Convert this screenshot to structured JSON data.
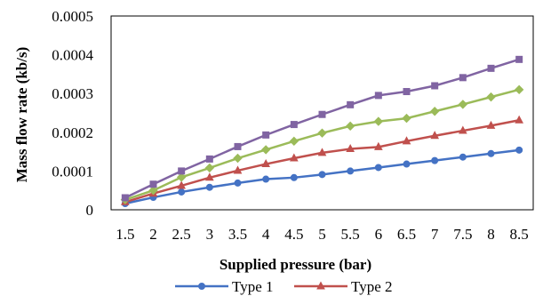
{
  "chart_data": {
    "type": "line",
    "title": "",
    "xlabel": "Supplied pressure (bar)",
    "ylabel": "Mass flow rate (kb/s)",
    "categories": [
      "1.5",
      "2",
      "2.5",
      "3",
      "3.5",
      "4",
      "4.5",
      "5",
      "5.5",
      "6",
      "6.5",
      "7",
      "7.5",
      "8",
      "8.5"
    ],
    "ylim": [
      0,
      0.0005
    ],
    "yticks": [
      "0",
      "0.0001",
      "0.0002",
      "0.0003",
      "0.0004",
      "0.0005"
    ],
    "grid": false,
    "legend_position": "bottom",
    "series": [
      {
        "name": "Type 1",
        "color": "#4472C4",
        "marker": "circle",
        "values": [
          1.6e-05,
          3.2e-05,
          4.6e-05,
          5.8e-05,
          6.9e-05,
          7.9e-05,
          8.3e-05,
          9.1e-05,
          0.0001,
          0.000109,
          0.000118,
          0.000127,
          0.000136,
          0.000145,
          0.000154
        ]
      },
      {
        "name": "Type 2",
        "color": "#C0504D",
        "marker": "triangle",
        "values": [
          2e-05,
          4.2e-05,
          6.2e-05,
          8.3e-05,
          0.000101,
          0.000118,
          0.000133,
          0.000147,
          0.000157,
          0.000162,
          0.000177,
          0.000191,
          0.000204,
          0.000217,
          0.000231
        ]
      },
      {
        "name": "",
        "color": "#9BBB59",
        "marker": "diamond",
        "values": [
          2.6e-05,
          5e-05,
          8.4e-05,
          0.000108,
          0.000133,
          0.000155,
          0.000177,
          0.000198,
          0.000216,
          0.000228,
          0.000236,
          0.000254,
          0.000272,
          0.000291,
          0.00031
        ]
      },
      {
        "name": "",
        "color": "#8064A2",
        "marker": "square",
        "values": [
          3.1e-05,
          6.6e-05,
          0.0001,
          0.000131,
          0.000163,
          0.000193,
          0.00022,
          0.000246,
          0.000271,
          0.000295,
          0.000305,
          0.00032,
          0.000341,
          0.000365,
          0.000388
        ]
      }
    ]
  }
}
